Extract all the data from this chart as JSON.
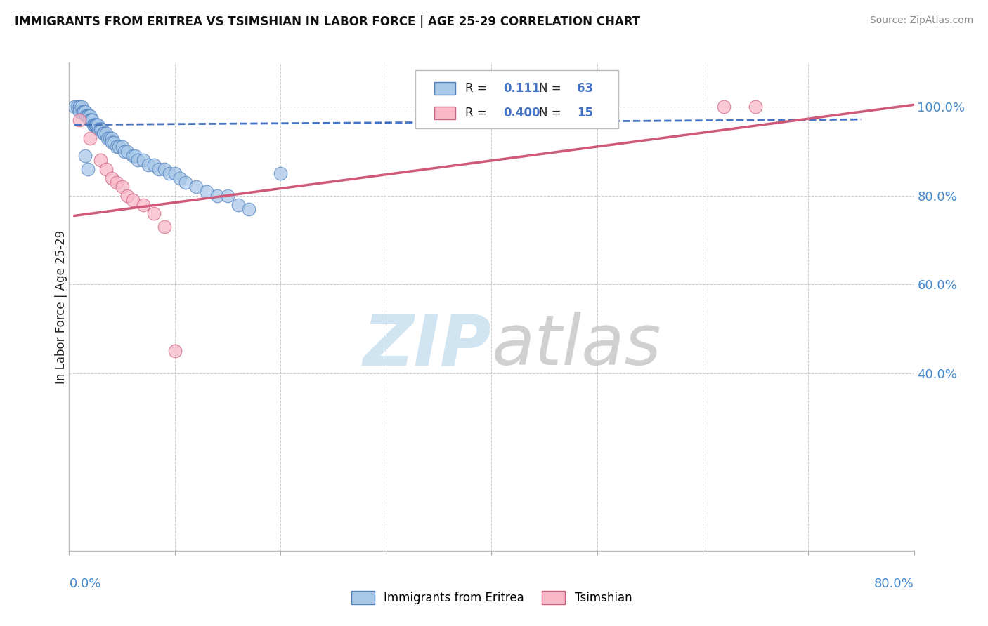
{
  "title": "IMMIGRANTS FROM ERITREA VS TSIMSHIAN IN LABOR FORCE | AGE 25-29 CORRELATION CHART",
  "source": "Source: ZipAtlas.com",
  "ylabel": "In Labor Force | Age 25-29",
  "r_eritrea": 0.111,
  "n_eritrea": 63,
  "r_tsimshian": 0.4,
  "n_tsimshian": 15,
  "color_eritrea": "#a8c8e8",
  "color_tsimshian": "#f8b8c8",
  "edge_eritrea": "#5080c0",
  "edge_tsimshian": "#d06080",
  "line_eritrea": "#4472c4",
  "line_tsimshian": "#d05878",
  "xmin": 0.0,
  "xmax": 0.8,
  "ymin": 0.0,
  "ymax": 1.1,
  "ytick_vals": [
    0.4,
    0.6,
    0.8,
    1.0
  ],
  "ytick_labels": [
    "40.0%",
    "60.0%",
    "80.0%",
    "100.0%"
  ],
  "legend_eritrea": "Immigrants from Eritrea",
  "legend_tsimshian": "Tsimshian",
  "eritrea_x": [
    0.005,
    0.008,
    0.01,
    0.01,
    0.01,
    0.012,
    0.013,
    0.014,
    0.015,
    0.015,
    0.016,
    0.017,
    0.018,
    0.019,
    0.02,
    0.02,
    0.02,
    0.021,
    0.022,
    0.023,
    0.024,
    0.025,
    0.025,
    0.026,
    0.027,
    0.028,
    0.03,
    0.03,
    0.031,
    0.032,
    0.033,
    0.035,
    0.036,
    0.038,
    0.04,
    0.04,
    0.042,
    0.045,
    0.047,
    0.05,
    0.052,
    0.055,
    0.06,
    0.062,
    0.065,
    0.07,
    0.075,
    0.08,
    0.085,
    0.09,
    0.095,
    0.1,
    0.105,
    0.11,
    0.12,
    0.13,
    0.14,
    0.15,
    0.16,
    0.17,
    0.2,
    0.015,
    0.018
  ],
  "eritrea_y": [
    1.0,
    1.0,
    1.0,
    1.0,
    0.99,
    1.0,
    0.99,
    0.99,
    0.99,
    0.99,
    0.98,
    0.98,
    0.98,
    0.98,
    0.98,
    0.97,
    0.97,
    0.97,
    0.97,
    0.96,
    0.96,
    0.96,
    0.96,
    0.96,
    0.96,
    0.95,
    0.95,
    0.95,
    0.95,
    0.94,
    0.94,
    0.94,
    0.93,
    0.93,
    0.93,
    0.92,
    0.92,
    0.91,
    0.91,
    0.91,
    0.9,
    0.9,
    0.89,
    0.89,
    0.88,
    0.88,
    0.87,
    0.87,
    0.86,
    0.86,
    0.85,
    0.85,
    0.84,
    0.83,
    0.82,
    0.81,
    0.8,
    0.8,
    0.78,
    0.77,
    0.85,
    0.89,
    0.86
  ],
  "tsimshian_x": [
    0.01,
    0.02,
    0.03,
    0.035,
    0.04,
    0.045,
    0.05,
    0.055,
    0.06,
    0.07,
    0.08,
    0.09,
    0.1,
    0.62,
    0.65
  ],
  "tsimshian_y": [
    0.97,
    0.93,
    0.88,
    0.86,
    0.84,
    0.83,
    0.82,
    0.8,
    0.79,
    0.78,
    0.76,
    0.73,
    0.45,
    1.0,
    1.0
  ],
  "eritrea_line_x": [
    0.005,
    0.75
  ],
  "eritrea_line_y": [
    0.96,
    0.972
  ],
  "tsimshian_line_x": [
    0.005,
    0.8
  ],
  "tsimshian_line_y": [
    0.755,
    1.005
  ],
  "watermark_zip_color": "#c8e0f0",
  "watermark_atlas_color": "#c8c8c8"
}
